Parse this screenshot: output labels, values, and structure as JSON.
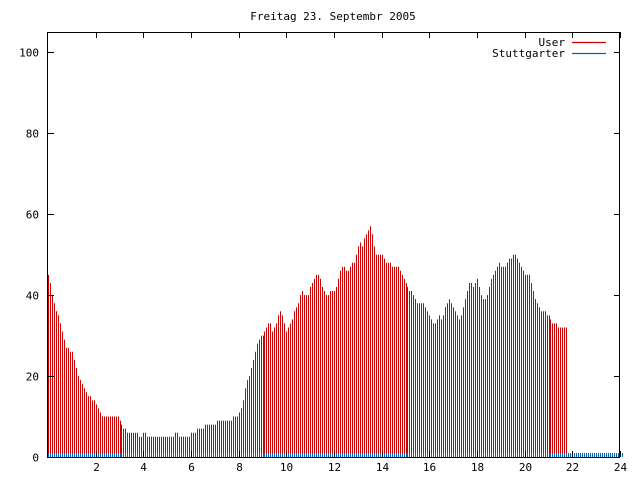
{
  "chart_data": {
    "type": "bar",
    "title": "Freitag 23. Septembr 2005",
    "xlabel": "",
    "ylabel": "",
    "xlim": [
      0,
      24
    ],
    "ylim": [
      0,
      105
    ],
    "grid": false,
    "legend_position": "top-right",
    "xticks": [
      2,
      4,
      6,
      8,
      10,
      12,
      14,
      16,
      18,
      20,
      22,
      24
    ],
    "yticks": [
      0,
      20,
      40,
      60,
      80,
      100
    ],
    "series": [
      {
        "name": "User",
        "color": "#cc0000",
        "interval_minutes": 5,
        "values": [
          45,
          43,
          40,
          38,
          36,
          35,
          33,
          31,
          29,
          27,
          27,
          26,
          26,
          24,
          22,
          20,
          19,
          18,
          17,
          16,
          15,
          15,
          14,
          14,
          13,
          12,
          11,
          10,
          10,
          10,
          10,
          10,
          10,
          10,
          10,
          10,
          9,
          8,
          7,
          7,
          6,
          6,
          6,
          6,
          6,
          6,
          5,
          5,
          6,
          6,
          5,
          5,
          5,
          5,
          5,
          5,
          5,
          5,
          5,
          5,
          5,
          5,
          5,
          5,
          6,
          6,
          5,
          5,
          5,
          5,
          5,
          5,
          6,
          6,
          6,
          7,
          7,
          7,
          7,
          8,
          8,
          8,
          8,
          8,
          8,
          9,
          9,
          9,
          9,
          9,
          9,
          9,
          9,
          10,
          10,
          10,
          11,
          12,
          14,
          17,
          19,
          20,
          22,
          24,
          26,
          28,
          29,
          30,
          30,
          31,
          32,
          33,
          33,
          31,
          32,
          33,
          35,
          36,
          35,
          33,
          31,
          32,
          33,
          34,
          36,
          37,
          38,
          40,
          41,
          40,
          40,
          40,
          42,
          43,
          44,
          45,
          45,
          44,
          42,
          41,
          40,
          40,
          41,
          41,
          41,
          42,
          44,
          46,
          47,
          47,
          46,
          46,
          47,
          48,
          48,
          50,
          52,
          53,
          52,
          54,
          55,
          56,
          57,
          55,
          52,
          50,
          50,
          50,
          50,
          49,
          48,
          48,
          48,
          47,
          47,
          47,
          47,
          46,
          45,
          44,
          43,
          42,
          41,
          41,
          40,
          39,
          38,
          38,
          38,
          38,
          37,
          36,
          35,
          34,
          33,
          33,
          34,
          35,
          34,
          35,
          37,
          38,
          39,
          38,
          37,
          36,
          35,
          34,
          35,
          37,
          39,
          41,
          43,
          43,
          42,
          43,
          44,
          42,
          40,
          39,
          39,
          40,
          42,
          44,
          45,
          46,
          47,
          48,
          47,
          47,
          47,
          48,
          49,
          49,
          50,
          50,
          49,
          48,
          47,
          46,
          45,
          45,
          45,
          43,
          41,
          39,
          38,
          37,
          36,
          36,
          36,
          35,
          35,
          34,
          33,
          33,
          33,
          32,
          32,
          32,
          32,
          32
        ]
      },
      {
        "name": "Stuttgarter",
        "color": "#0066b3",
        "interval_minutes": 5,
        "values": [
          1,
          1,
          1,
          1,
          1,
          1,
          1,
          1,
          1,
          1,
          1,
          1,
          1,
          1,
          1,
          1,
          1,
          1,
          1,
          1,
          1,
          1,
          1,
          1,
          1,
          1,
          1,
          1,
          1,
          1,
          1,
          1,
          1,
          1,
          1,
          1,
          1,
          1,
          1,
          1,
          1,
          1,
          1,
          1,
          1,
          1,
          1,
          1,
          1,
          1,
          1,
          1,
          1,
          1,
          1,
          1,
          1,
          1,
          1,
          1,
          1,
          1,
          1,
          1,
          1,
          1,
          1,
          1,
          1,
          1,
          1,
          1,
          1,
          1,
          1,
          1,
          1,
          1,
          1,
          1,
          1,
          1,
          1,
          1,
          1,
          1,
          1,
          1,
          1,
          1,
          1,
          1,
          1,
          1,
          1,
          1,
          1,
          1,
          1,
          1,
          1,
          1,
          1,
          1,
          1,
          1,
          1,
          1,
          1,
          1,
          1,
          1,
          1,
          1,
          1,
          1,
          1,
          1,
          1,
          1,
          1,
          1,
          1,
          1,
          1,
          1,
          1,
          1,
          1,
          1,
          1,
          1,
          1,
          1,
          1,
          1,
          1,
          1,
          1,
          1,
          1,
          1,
          1,
          1,
          1,
          1,
          1,
          1,
          1,
          1,
          1,
          1,
          1,
          1,
          1,
          1,
          1,
          1,
          1,
          1,
          1,
          1,
          1,
          1,
          1,
          1,
          1,
          1,
          1,
          1,
          1,
          1,
          1,
          1,
          1,
          1,
          1,
          1,
          1,
          1,
          1,
          1,
          1,
          1,
          1,
          1,
          1,
          1,
          1,
          1,
          1,
          1,
          1,
          1,
          1,
          1,
          1,
          1,
          1,
          1,
          1,
          1,
          1,
          1,
          1,
          1,
          1,
          1,
          1,
          1,
          1,
          1,
          1,
          1,
          1,
          1,
          1,
          1,
          1,
          1,
          1,
          1,
          1,
          1,
          1,
          1,
          1,
          1,
          1,
          1,
          1,
          1,
          1,
          1,
          1,
          1,
          1,
          1,
          1,
          1,
          1,
          1,
          1,
          1,
          1,
          1,
          1,
          1,
          1,
          1,
          1,
          1,
          1,
          1,
          1,
          1,
          1,
          1,
          1,
          1,
          1,
          1,
          1,
          1,
          1,
          1,
          1,
          1,
          1,
          1,
          1,
          1,
          1,
          1,
          1,
          1,
          1,
          1,
          1,
          1,
          1,
          1,
          1,
          1,
          1,
          1,
          1,
          1,
          1,
          1
        ]
      }
    ]
  }
}
